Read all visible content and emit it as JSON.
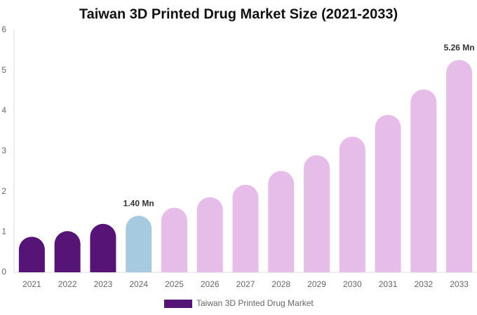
{
  "chart_data": {
    "type": "bar",
    "title": "Taiwan 3D Printed Drug Market Size (2021-2033)",
    "categories": [
      "2021",
      "2022",
      "2023",
      "2024",
      "2025",
      "2026",
      "2027",
      "2028",
      "2029",
      "2030",
      "2031",
      "2032",
      "2033"
    ],
    "series": [
      {
        "name": "Taiwan 3D Printed Drug Market",
        "color": "#561476",
        "values": [
          0.88,
          1.02,
          1.2,
          1.4,
          1.6,
          1.86,
          2.17,
          2.51,
          2.9,
          3.36,
          3.9,
          4.53,
          5.26
        ],
        "colors": [
          "#561476",
          "#561476",
          "#561476",
          "#a6cbe0",
          "#e6bce8",
          "#e6bce8",
          "#e6bce8",
          "#e6bce8",
          "#e6bce8",
          "#e6bce8",
          "#e6bce8",
          "#e6bce8",
          "#e6bce8"
        ],
        "value_labels": [
          null,
          null,
          null,
          "1.40 Mn",
          null,
          null,
          null,
          null,
          null,
          null,
          null,
          null,
          "5.26 Mn"
        ]
      }
    ],
    "ylim": [
      0,
      6
    ],
    "yticks": [
      0,
      1,
      2,
      3,
      4,
      5,
      6
    ],
    "grid": false
  }
}
